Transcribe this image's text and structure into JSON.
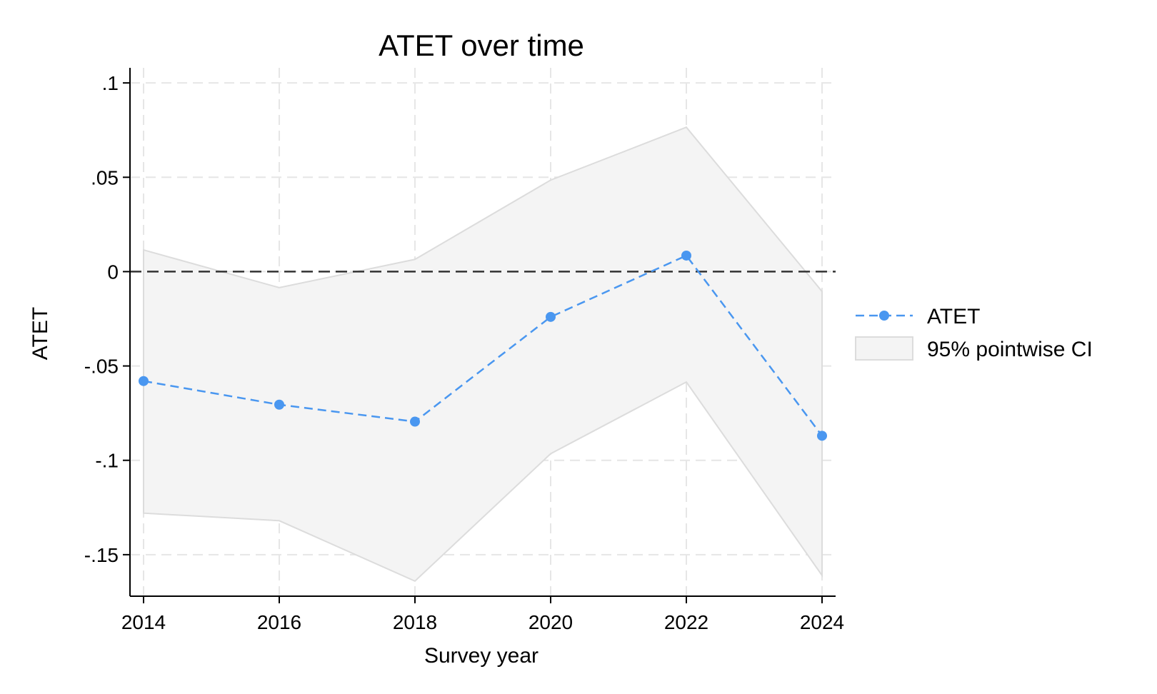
{
  "chart_data": {
    "type": "line",
    "title": "ATET over time",
    "xlabel": "Survey year",
    "ylabel": "ATET",
    "xlim": [
      2013.8,
      2024.2
    ],
    "ylim": [
      -0.172,
      0.108
    ],
    "x_ticks": [
      2014,
      2016,
      2018,
      2020,
      2022,
      2024
    ],
    "x_tick_labels": [
      "2014",
      "2016",
      "2018",
      "2020",
      "2022",
      "2024"
    ],
    "y_ticks": [
      0.1,
      0.05,
      0,
      -0.05,
      -0.1,
      -0.15
    ],
    "y_tick_labels": [
      ".1",
      ".05",
      "0",
      "-.05",
      "-.1",
      "-.15"
    ],
    "grid": true,
    "reference_line_y": 0,
    "legend_position": "right",
    "x": [
      2014,
      2016,
      2018,
      2020,
      2022,
      2024
    ],
    "series": [
      {
        "name": "ATET",
        "color": "#4a97f0",
        "values": [
          -0.058,
          -0.0705,
          -0.0795,
          -0.024,
          0.0085,
          -0.087
        ]
      }
    ],
    "ci_band": {
      "name": "95% pointwise CI",
      "fill": "#f4f4f4",
      "stroke": "#dcdcdc",
      "lower": [
        -0.128,
        -0.132,
        -0.164,
        -0.0965,
        -0.0585,
        -0.161
      ],
      "upper": [
        0.0115,
        -0.0085,
        0.0065,
        0.0485,
        0.0765,
        -0.0105
      ]
    }
  }
}
